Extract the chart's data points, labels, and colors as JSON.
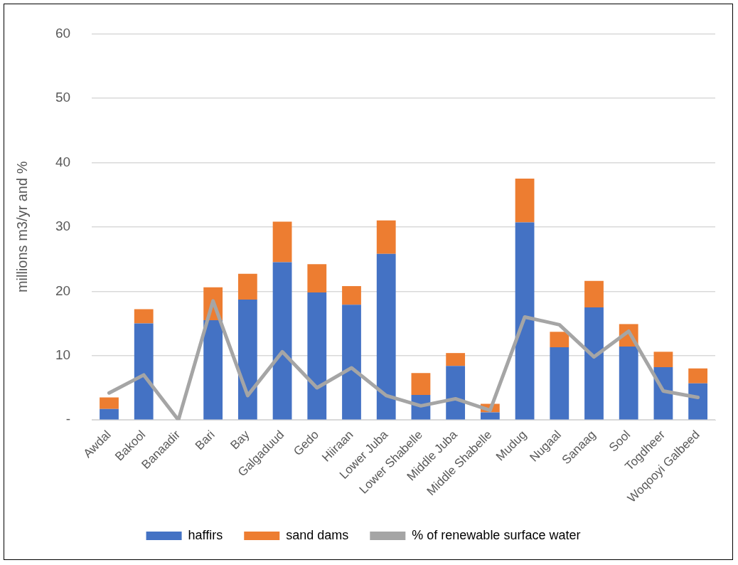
{
  "chart_data": {
    "type": "bar",
    "stacked": true,
    "ylabel": "millions m3/yr and %",
    "categories": [
      "Awdal",
      "Bakool",
      "Banaadir",
      "Bari",
      "Bay",
      "Galgaduud",
      "Gedo",
      "Hiiraan",
      "Lower Juba",
      "Lower Shabelle",
      "Middle Juba",
      "Middle Shabelle",
      "Mudug",
      "Nugaal",
      "Sanaag",
      "Sool",
      "Togdheer",
      "Woqooyi Galbeed"
    ],
    "series": [
      {
        "name": "haffirs",
        "color": "#4472c4",
        "values": [
          1.7,
          15.0,
          0,
          15.5,
          18.7,
          24.5,
          19.8,
          17.9,
          25.8,
          3.9,
          8.4,
          1.2,
          30.7,
          11.3,
          17.5,
          11.4,
          8.2,
          5.7
        ]
      },
      {
        "name": "sand dams",
        "color": "#ed7d31",
        "values": [
          1.8,
          2.2,
          0,
          5.1,
          4.0,
          6.3,
          4.4,
          2.9,
          5.2,
          3.4,
          2.0,
          1.3,
          6.8,
          2.4,
          4.1,
          3.5,
          2.4,
          2.3
        ]
      },
      {
        "name": "% of renewable surface water",
        "type": "line",
        "color": "#a5a5a5",
        "values": [
          4.2,
          7.0,
          0,
          18.5,
          3.8,
          10.6,
          5.0,
          8.1,
          3.8,
          2.2,
          3.3,
          1.5,
          16.0,
          14.8,
          9.8,
          13.8,
          4.5,
          3.5
        ]
      }
    ],
    "ylim": [
      0,
      60
    ],
    "yticks": [
      {
        "value": 0,
        "label": "-"
      },
      10,
      20,
      30,
      40,
      50,
      60
    ],
    "grid": "y",
    "legend": "bottom",
    "marker": "none"
  }
}
